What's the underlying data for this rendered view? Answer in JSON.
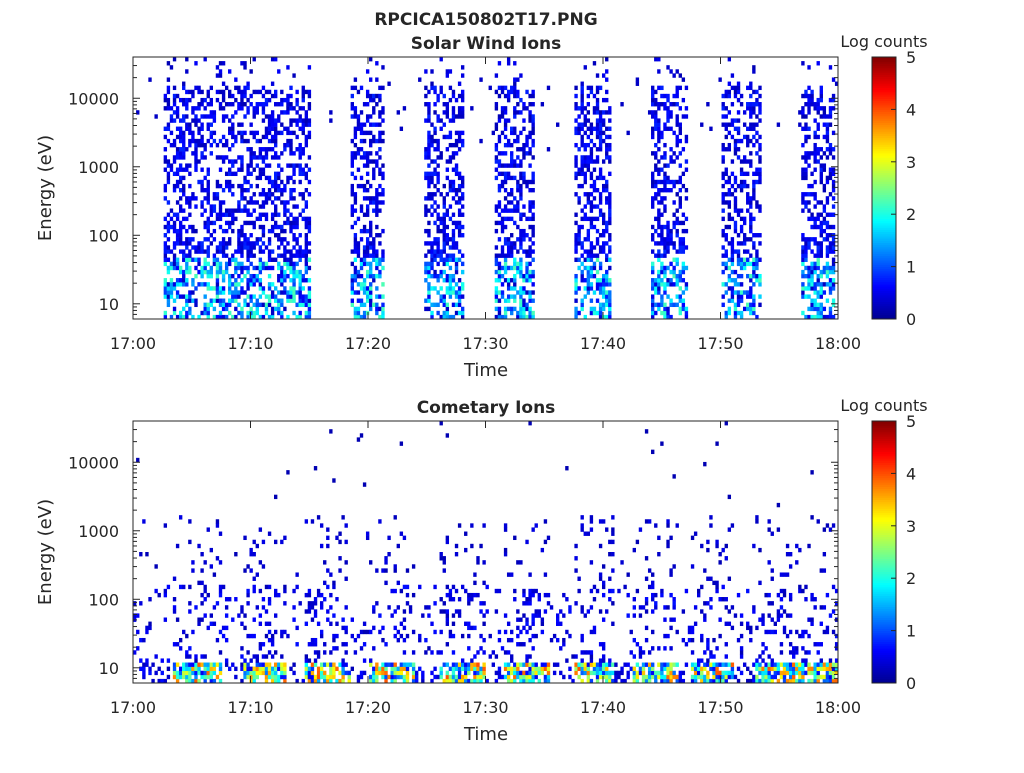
{
  "figure": {
    "title": "RPCICA150802T17.PNG"
  },
  "colormap": {
    "name": "jet",
    "stops": [
      "#00008f",
      "#0000ff",
      "#0080ff",
      "#00ffff",
      "#80ff80",
      "#ffff00",
      "#ff8000",
      "#ff0000",
      "#800000"
    ]
  },
  "chart_data": [
    {
      "type": "heatmap",
      "title": "Solar Wind Ions",
      "xlabel": "Time",
      "ylabel": "Energy (eV)",
      "x_ticks": [
        "17:00",
        "17:10",
        "17:20",
        "17:30",
        "17:40",
        "17:50",
        "18:00"
      ],
      "xlim_minutes": [
        0,
        60
      ],
      "y_ticks": [
        {
          "value": 10,
          "label": "10"
        },
        {
          "value": 100,
          "label": "100"
        },
        {
          "value": 1000,
          "label": "1000"
        },
        {
          "value": 10000,
          "label": "10000"
        }
      ],
      "y_scale": "log",
      "ylim": [
        6,
        40000
      ],
      "colorbar": {
        "label": "Log counts",
        "range": [
          0,
          5
        ],
        "ticks": [
          "0",
          "1",
          "2",
          "3",
          "4",
          "5"
        ]
      },
      "bursts_minutes": [
        [
          2.5,
          15.2
        ],
        [
          18.5,
          21.5
        ],
        [
          24.7,
          28.3
        ],
        [
          30.7,
          34.2
        ],
        [
          37.5,
          40.8
        ],
        [
          44.0,
          47.3
        ],
        [
          50.0,
          53.6
        ],
        [
          56.8,
          59.8
        ]
      ],
      "low_energy_peak_ev": 25,
      "peak_log_counts": 2.6
    },
    {
      "type": "heatmap",
      "title": "Cometary Ions",
      "xlabel": "Time",
      "ylabel": "Energy (eV)",
      "x_ticks": [
        "17:00",
        "17:10",
        "17:20",
        "17:30",
        "17:40",
        "17:50",
        "18:00"
      ],
      "xlim_minutes": [
        0,
        60
      ],
      "y_ticks": [
        {
          "value": 10,
          "label": "10"
        },
        {
          "value": 100,
          "label": "100"
        },
        {
          "value": 1000,
          "label": "1000"
        },
        {
          "value": 10000,
          "label": "10000"
        }
      ],
      "y_scale": "log",
      "ylim": [
        6,
        40000
      ],
      "colorbar": {
        "label": "Log counts",
        "range": [
          0,
          5
        ],
        "ticks": [
          "0",
          "1",
          "2",
          "3",
          "4",
          "5"
        ]
      },
      "bursts_minutes": [
        [
          3.5,
          7.5
        ],
        [
          9.5,
          13.0
        ],
        [
          14.5,
          18.5
        ],
        [
          20.0,
          24.0
        ],
        [
          26.0,
          30.0
        ],
        [
          31.5,
          35.5
        ],
        [
          37.5,
          41.0
        ],
        [
          42.5,
          46.5
        ],
        [
          47.5,
          51.0
        ],
        [
          53.0,
          57.0
        ],
        [
          57.5,
          60.0
        ]
      ],
      "low_energy_peak_ev": 22,
      "peak_log_counts": 3.5
    }
  ]
}
